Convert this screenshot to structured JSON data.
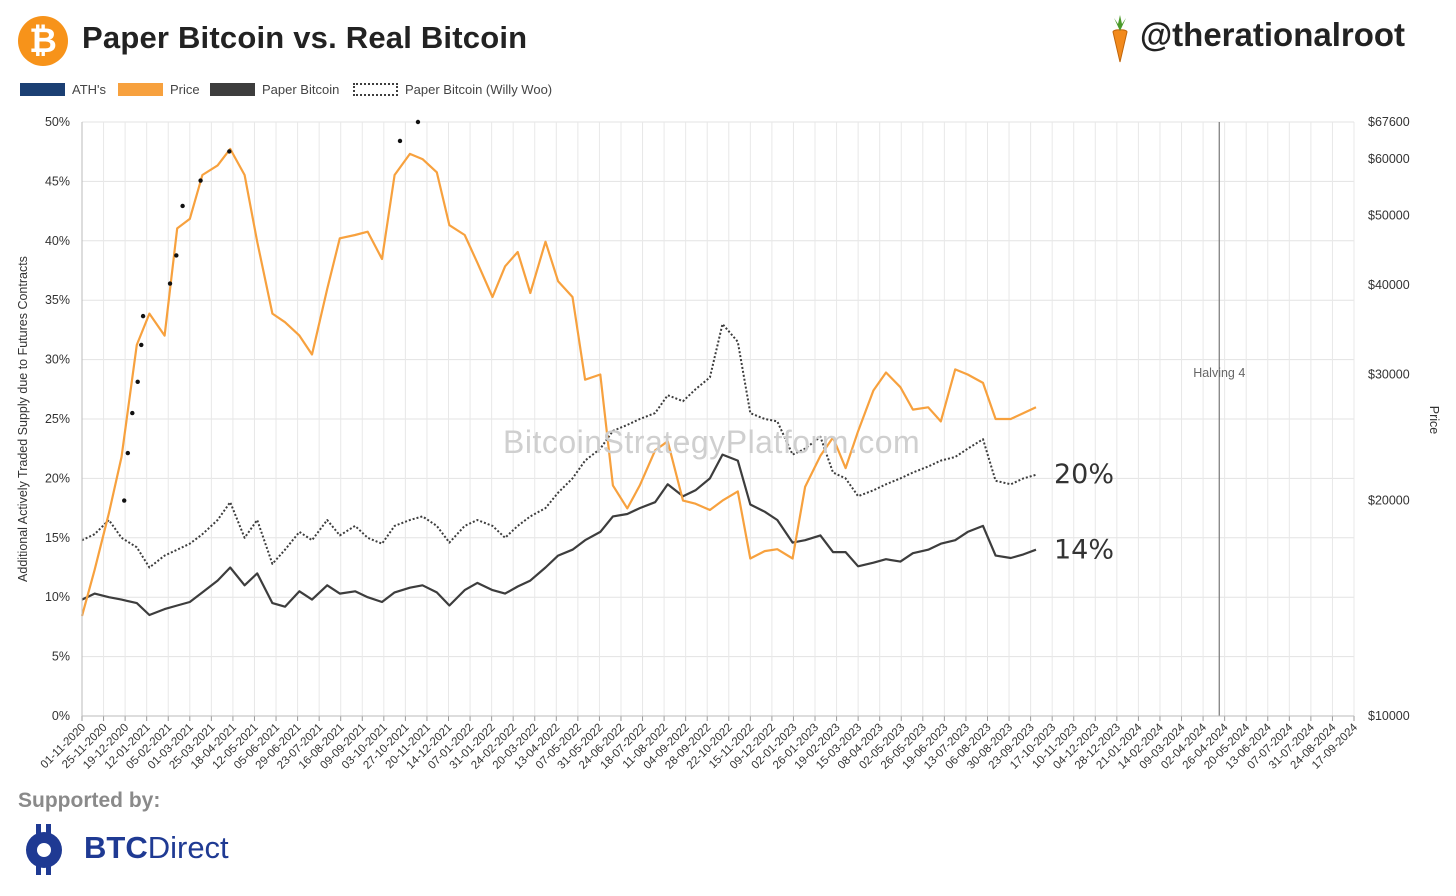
{
  "header": {
    "title": "Paper Bitcoin vs. Real Bitcoin",
    "handle": "@therationalroot"
  },
  "watermark": "BitcoinStrategyPlatform.com",
  "footer": {
    "supported_by": "Supported by:",
    "sponsor_bold": "BTC",
    "sponsor_rest": "Direct"
  },
  "colors": {
    "ath": "#1b3f73",
    "price": "#f7a13e",
    "paper": "#3d3d3d",
    "woo": "#3d3d3d",
    "bitcoin_orange": "#f7931a",
    "sponsor_blue": "#1f3a93"
  },
  "chart_data": {
    "type": "line",
    "title": "Paper Bitcoin vs. Real Bitcoin",
    "ylabel": "Additional Actively Traded Supply due to Futures Contracts",
    "y2label": "Price",
    "ylim": [
      0,
      50
    ],
    "y2lim": [
      10000,
      67600
    ],
    "y2scale": "log",
    "grid": true,
    "legend_position": "top-left",
    "legend": [
      {
        "name": "ATH's",
        "style": "solid",
        "color": "#1b3f73"
      },
      {
        "name": "Price",
        "style": "solid",
        "color": "#f7a13e"
      },
      {
        "name": "Paper Bitcoin",
        "style": "solid",
        "color": "#3d3d3d"
      },
      {
        "name": "Paper Bitcoin (Willy Woo)",
        "style": "dotted",
        "color": "#3d3d3d"
      }
    ],
    "y_ticks": [
      "0%",
      "5%",
      "10%",
      "15%",
      "20%",
      "25%",
      "30%",
      "35%",
      "40%",
      "45%",
      "50%"
    ],
    "y2_ticks": [
      {
        "value": 10000,
        "label": "$10000"
      },
      {
        "value": 20000,
        "label": "$20000"
      },
      {
        "value": 30000,
        "label": "$30000"
      },
      {
        "value": 40000,
        "label": "$40000"
      },
      {
        "value": 50000,
        "label": "$50000"
      },
      {
        "value": 60000,
        "label": "$60000"
      },
      {
        "value": 67600,
        "label": "$67600"
      }
    ],
    "x_ticks": [
      "01-11-2020",
      "25-11-2020",
      "19-12-2020",
      "12-01-2021",
      "05-02-2021",
      "01-03-2021",
      "25-03-2021",
      "18-04-2021",
      "12-05-2021",
      "05-06-2021",
      "29-06-2021",
      "23-07-2021",
      "16-08-2021",
      "09-09-2021",
      "03-10-2021",
      "27-10-2021",
      "20-11-2021",
      "14-12-2021",
      "07-01-2022",
      "31-01-2022",
      "24-02-2022",
      "20-03-2022",
      "13-04-2022",
      "07-05-2022",
      "31-05-2022",
      "24-06-2022",
      "18-07-2022",
      "11-08-2022",
      "04-09-2022",
      "28-09-2022",
      "22-10-2022",
      "15-11-2022",
      "09-12-2022",
      "02-01-2023",
      "26-01-2023",
      "19-02-2023",
      "15-03-2023",
      "08-04-2023",
      "02-05-2023",
      "26-05-2023",
      "19-06-2023",
      "13-07-2023",
      "06-08-2023",
      "30-08-2023",
      "23-09-2023",
      "17-10-2023",
      "10-11-2023",
      "04-12-2023",
      "28-12-2023",
      "21-01-2024",
      "14-02-2024",
      "09-03-2024",
      "02-04-2024",
      "26-04-2024",
      "20-05-2024",
      "13-06-2024",
      "07-07-2024",
      "31-07-2024",
      "24-08-2024",
      "17-09-2024"
    ],
    "annotations": [
      {
        "text": "Halving 4",
        "x": "20-04-2024",
        "type": "vline"
      },
      {
        "text": "20%",
        "series": "Paper Bitcoin (Willy Woo)"
      },
      {
        "text": "14%",
        "series": "Paper Bitcoin"
      }
    ],
    "x_dates": [
      "01-11-2020",
      "15-11-2020",
      "01-12-2020",
      "15-12-2020",
      "01-01-2021",
      "15-01-2021",
      "01-02-2021",
      "15-02-2021",
      "01-03-2021",
      "15-03-2021",
      "01-04-2021",
      "15-04-2021",
      "01-05-2021",
      "15-05-2021",
      "01-06-2021",
      "15-06-2021",
      "01-07-2021",
      "15-07-2021",
      "01-08-2021",
      "15-08-2021",
      "01-09-2021",
      "15-09-2021",
      "01-10-2021",
      "15-10-2021",
      "01-11-2021",
      "15-11-2021",
      "01-12-2021",
      "15-12-2021",
      "01-01-2022",
      "15-01-2022",
      "01-02-2022",
      "15-02-2022",
      "01-03-2022",
      "15-03-2022",
      "01-04-2022",
      "15-04-2022",
      "01-05-2022",
      "15-05-2022",
      "01-06-2022",
      "15-06-2022",
      "01-07-2022",
      "15-07-2022",
      "01-08-2022",
      "15-08-2022",
      "01-09-2022",
      "15-09-2022",
      "01-10-2022",
      "15-10-2022",
      "01-11-2022",
      "15-11-2022",
      "01-12-2022",
      "15-12-2022",
      "01-01-2023",
      "15-01-2023",
      "01-02-2023",
      "15-02-2023",
      "01-03-2023",
      "15-03-2023",
      "01-04-2023",
      "15-04-2023",
      "01-05-2023",
      "15-05-2023",
      "01-06-2023",
      "15-06-2023",
      "01-07-2023",
      "15-07-2023",
      "01-08-2023",
      "15-08-2023",
      "01-09-2023",
      "15-09-2023",
      "29-09-2023"
    ],
    "series": [
      {
        "name": "Price",
        "axis": "right",
        "values": [
          13800,
          16000,
          19200,
          23000,
          33000,
          36500,
          34000,
          48000,
          49500,
          57000,
          58800,
          62000,
          57000,
          46000,
          36500,
          35500,
          34000,
          32000,
          39500,
          46500,
          47000,
          47500,
          43500,
          57000,
          61000,
          60000,
          57500,
          48500,
          47000,
          43000,
          38500,
          42500,
          44500,
          39000,
          46000,
          40500,
          38500,
          29500,
          30000,
          21000,
          19500,
          21000,
          23500,
          24200,
          20000,
          19800,
          19400,
          20000,
          20600,
          16600,
          17000,
          17100,
          16600,
          20900,
          23100,
          24500,
          22200,
          25000,
          28500,
          30200,
          28800,
          26800,
          27000,
          25800,
          30500,
          30000,
          29200,
          26000,
          26000,
          26500,
          27000
        ]
      },
      {
        "name": "Paper Bitcoin",
        "axis": "left",
        "values": [
          9.8,
          10.3,
          10.0,
          9.8,
          9.5,
          8.5,
          9.0,
          9.3,
          9.6,
          10.4,
          11.4,
          12.5,
          11.0,
          12.0,
          9.5,
          9.2,
          10.5,
          9.8,
          11.0,
          10.3,
          10.5,
          10.0,
          9.6,
          10.4,
          10.8,
          11.0,
          10.4,
          9.3,
          10.6,
          11.2,
          10.6,
          10.3,
          10.9,
          11.4,
          12.5,
          13.5,
          14.0,
          14.8,
          15.5,
          16.8,
          17.0,
          17.5,
          18.0,
          19.5,
          18.5,
          19.0,
          20.0,
          22.0,
          21.5,
          17.8,
          17.2,
          16.5,
          14.6,
          14.8,
          15.2,
          13.8,
          13.8,
          12.6,
          12.9,
          13.2,
          13.0,
          13.7,
          14.0,
          14.5,
          14.8,
          15.5,
          16.0,
          13.5,
          13.3,
          13.6,
          14.0
        ]
      },
      {
        "name": "Paper Bitcoin (Willy Woo)",
        "axis": "left",
        "values": [
          14.8,
          15.3,
          16.5,
          15.0,
          14.2,
          12.5,
          13.5,
          14.0,
          14.5,
          15.3,
          16.5,
          18.0,
          15.0,
          16.5,
          12.8,
          14.0,
          15.5,
          14.8,
          16.5,
          15.2,
          16.0,
          15.0,
          14.5,
          16.0,
          16.5,
          16.8,
          16.0,
          14.6,
          16.0,
          16.5,
          16.0,
          15.0,
          16.0,
          16.8,
          17.5,
          18.8,
          20.0,
          21.5,
          22.5,
          24.0,
          24.5,
          25.0,
          25.5,
          27.0,
          26.5,
          27.5,
          28.5,
          33.0,
          31.5,
          25.5,
          25.0,
          24.8,
          22.0,
          22.5,
          23.5,
          20.5,
          20.0,
          18.5,
          19.0,
          19.5,
          20.0,
          20.5,
          21.0,
          21.5,
          21.8,
          22.5,
          23.3,
          19.8,
          19.5,
          20.0,
          20.3
        ]
      },
      {
        "name": "ATH's",
        "axis": "right",
        "type": "scatter",
        "x": [
          "18-12-2020",
          "22-12-2020",
          "27-12-2020",
          "02-01-2021",
          "06-01-2021",
          "08-01-2021",
          "07-02-2021",
          "14-02-2021",
          "21-02-2021",
          "13-03-2021",
          "14-04-2021",
          "21-10-2021",
          "10-11-2021"
        ],
        "values": [
          20000,
          23300,
          26500,
          29300,
          33000,
          36200,
          40200,
          44000,
          51600,
          56000,
          61500,
          63600,
          67600
        ]
      }
    ]
  }
}
